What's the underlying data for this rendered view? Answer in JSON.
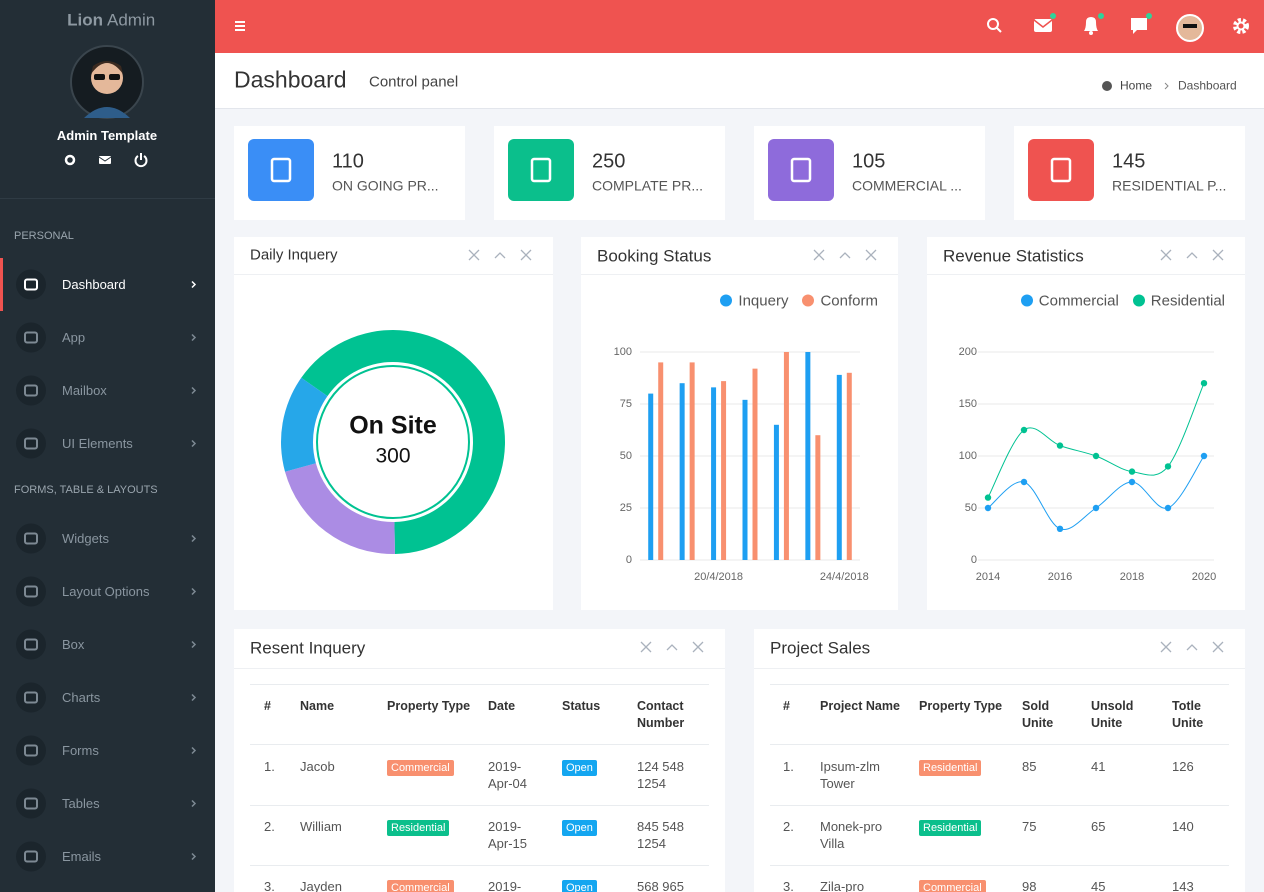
{
  "brand": {
    "name": "Lion",
    "suffix": "Admin"
  },
  "user": {
    "name": "Admin Template"
  },
  "sidebar": [
    {
      "heading": "PERSONAL",
      "items": [
        "Dashboard",
        "App",
        "Mailbox",
        "UI Elements"
      ]
    },
    {
      "heading": "FORMS, TABLE & LAYOUTS",
      "items": [
        "Widgets",
        "Layout Options",
        "Box",
        "Charts",
        "Forms",
        "Tables",
        "Emails"
      ]
    }
  ],
  "header": {
    "title": "Dashboard",
    "subtitle": "Control panel",
    "breadcrumb": [
      "Home",
      "Dashboard"
    ]
  },
  "stats": [
    {
      "value": 110,
      "label": "ON GOING PR...",
      "color": "#3a8ef6"
    },
    {
      "value": 250,
      "label": "COMPLATE PR...",
      "color": "#0bbf8c"
    },
    {
      "value": 105,
      "label": "COMMERCIAL ...",
      "color": "#8e6bdb"
    },
    {
      "value": 145,
      "label": "RESIDENTIAL P...",
      "color": "#ef5350"
    }
  ],
  "chart_data": [
    {
      "type": "donut",
      "title": "Daily Inquery",
      "center_label": "On Site",
      "center_value": 300,
      "values": [
        65,
        21,
        14
      ],
      "colors": [
        "#00c292",
        "#ab8ce4",
        "#26a7e9"
      ]
    },
    {
      "type": "bar",
      "title": "Booking Status",
      "categories": [
        null,
        null,
        "20/4/2018",
        null,
        null,
        null,
        "24/4/2018"
      ],
      "series": [
        {
          "name": "Inquery",
          "color": "#1e9ff2",
          "values": [
            80,
            85,
            83,
            77,
            65,
            100,
            89
          ]
        },
        {
          "name": "Conform",
          "color": "#f8906f",
          "values": [
            95,
            95,
            86,
            92,
            100,
            60,
            90
          ]
        }
      ],
      "ylim": [
        0,
        100
      ],
      "yticks": [
        0,
        25,
        50,
        75,
        100
      ],
      "grid": true
    },
    {
      "type": "line",
      "title": "Revenue Statistics",
      "x": [
        2014,
        2015,
        2016,
        2017,
        2018,
        2019,
        2020
      ],
      "series": [
        {
          "name": "Commercial",
          "color": "#1e9ff2",
          "values": [
            50,
            75,
            30,
            50,
            75,
            50,
            100
          ]
        },
        {
          "name": "Residential",
          "color": "#00c292",
          "values": [
            60,
            125,
            110,
            100,
            85,
            90,
            170
          ]
        }
      ],
      "xlim": [
        2014,
        2020
      ],
      "xticks": [
        2014,
        2016,
        2018,
        2020
      ],
      "ylim": [
        0,
        200
      ],
      "yticks": [
        0,
        50,
        100,
        150,
        200
      ],
      "grid": true
    }
  ],
  "tables": [
    {
      "title": "Resent Inquery",
      "columns": [
        "#",
        "Name",
        "Property Type",
        "Date",
        "Status",
        "Contact Number"
      ],
      "rows": [
        [
          "1.",
          "Jacob",
          {
            "text": "Commercial",
            "color": "#f8906f"
          },
          "2019-Apr-04",
          {
            "text": "Open",
            "color": "#14a6f0"
          },
          "124 548 1254"
        ],
        [
          "2.",
          "William",
          {
            "text": "Residential",
            "color": "#0bbf8c"
          },
          "2019-Apr-15",
          {
            "text": "Open",
            "color": "#14a6f0"
          },
          "845 548 1254"
        ],
        [
          "3.",
          "Jayden",
          {
            "text": "Commercial",
            "color": "#f8906f"
          },
          "2019-",
          {
            "text": "Open",
            "color": "#14a6f0"
          },
          "568 965"
        ]
      ]
    },
    {
      "title": "Project Sales",
      "columns": [
        "#",
        "Project Name",
        "Property Type",
        "Sold Unite",
        "Unsold Unite",
        "Totle Unite"
      ],
      "rows": [
        [
          "1.",
          "Ipsum-zlm Tower",
          {
            "text": "Residential",
            "color": "#f8906f"
          },
          85,
          41,
          126
        ],
        [
          "2.",
          "Monek-pro Villa",
          {
            "text": "Residential",
            "color": "#0bbf8c"
          },
          75,
          65,
          140
        ],
        [
          "3.",
          "Zila-pro",
          {
            "text": "Commercial",
            "color": "#f8906f"
          },
          98,
          45,
          143
        ]
      ]
    }
  ]
}
